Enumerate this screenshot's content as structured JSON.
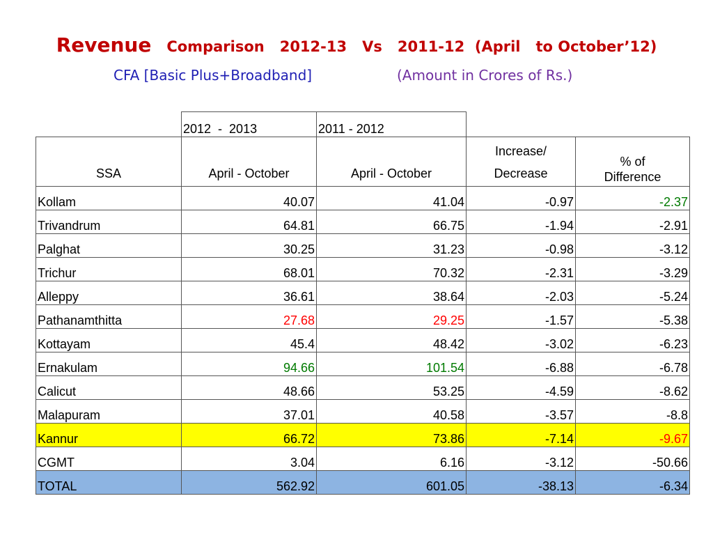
{
  "title": {
    "revenue": "Revenue",
    "comparison": "Comparison",
    "year1": "2012-13",
    "vs": "Vs",
    "year2": "2011-12",
    "period": "(April   to October’12)"
  },
  "subtitle": {
    "cfa": "CFA [Basic Plus+Broadband]",
    "amount": "(Amount in Crores of Rs.)"
  },
  "table": {
    "year_headers": [
      "2012  -  2013",
      "2011 - 2012"
    ],
    "headers": {
      "ssa": "SSA",
      "col1": "April - October",
      "col2": "April - October",
      "inc_line1": "Increase/",
      "inc_line2": "Decrease",
      "pct_line1": "% of",
      "pct_line2": "Difference"
    },
    "rows": [
      {
        "ssa": "Kollam",
        "v2012": "40.07",
        "v2011": "41.04",
        "diff": "-0.97",
        "pct": "-2.37"
      },
      {
        "ssa": "Trivandrum",
        "v2012": "64.81",
        "v2011": "66.75",
        "diff": "-1.94",
        "pct": "-2.91"
      },
      {
        "ssa": "Palghat",
        "v2012": "30.25",
        "v2011": "31.23",
        "diff": "-0.98",
        "pct": "-3.12"
      },
      {
        "ssa": "Trichur",
        "v2012": "68.01",
        "v2011": "70.32",
        "diff": "-2.31",
        "pct": "-3.29"
      },
      {
        "ssa": "Alleppy",
        "v2012": "36.61",
        "v2011": "38.64",
        "diff": "-2.03",
        "pct": "-5.24"
      },
      {
        "ssa": "Pathanamthitta",
        "v2012": "27.68",
        "v2011": "29.25",
        "diff": "-1.57",
        "pct": "-5.38"
      },
      {
        "ssa": "Kottayam",
        "v2012": "45.4",
        "v2011": "48.42",
        "diff": "-3.02",
        "pct": "-6.23"
      },
      {
        "ssa": "Ernakulam",
        "v2012": "94.66",
        "v2011": "101.54",
        "diff": "-6.88",
        "pct": "-6.78"
      },
      {
        "ssa": "Calicut",
        "v2012": "48.66",
        "v2011": "53.25",
        "diff": "-4.59",
        "pct": "-8.62"
      },
      {
        "ssa": "Malapuram",
        "v2012": "37.01",
        "v2011": "40.58",
        "diff": "-3.57",
        "pct": "-8.8"
      },
      {
        "ssa": "Kannur",
        "v2012": "66.72",
        "v2011": "73.86",
        "diff": "-7.14",
        "pct": "-9.67"
      },
      {
        "ssa": "CGMT",
        "v2012": "3.04",
        "v2011": "6.16",
        "diff": "-3.12",
        "pct": "-50.66"
      }
    ],
    "total": {
      "ssa": "TOTAL",
      "v2012": "562.92",
      "v2011": "601.05",
      "diff": "-38.13",
      "pct": "-6.34"
    }
  },
  "colors": {
    "title_red": "#c00000",
    "subtitle_blue": "#1f1fb4",
    "subtitle_purple": "#7030a0",
    "highlight_yellow": "#ffff00",
    "total_blue": "#8db4e2",
    "value_red": "#ff0000",
    "value_green": "#007a00"
  }
}
